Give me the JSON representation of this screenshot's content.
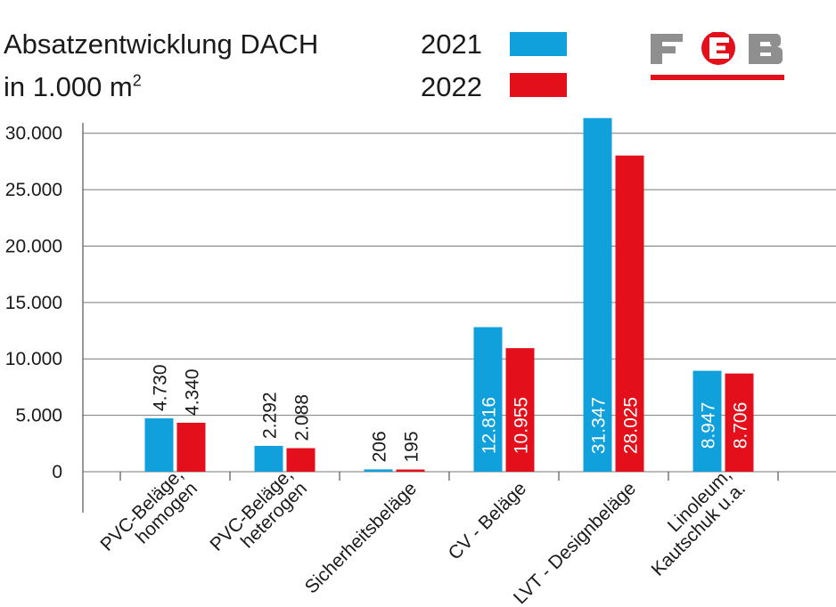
{
  "header": {
    "title_line1": "Absatzentwicklung DACH",
    "title_line2_prefix": "in 1.000 m",
    "title_line2_sup": "2"
  },
  "logo": {
    "text": "FEB",
    "colors": {
      "gray": "#8f8f8f",
      "red": "#e3101c"
    }
  },
  "colors": {
    "2021": "#10a0dc",
    "2022": "#e3101c",
    "axis": "#555555",
    "grid": "#7a7a7a"
  },
  "chart_data": {
    "type": "bar",
    "title": "Absatzentwicklung DACH in 1.000 m²",
    "categories": [
      [
        "PVC-Beläge,",
        "homogen"
      ],
      [
        "PVC-Beläge,",
        "heterogen"
      ],
      [
        "Sicherheitsbeläge"
      ],
      [
        "CV - Beläge"
      ],
      [
        "LVT - Designbeläge"
      ],
      [
        "Linoleum,",
        "Kautschuk u.a."
      ]
    ],
    "series": [
      {
        "name": "2021",
        "values": [
          4730,
          2292,
          206,
          12816,
          31347,
          8947
        ],
        "labels": [
          "4.730",
          "2.292",
          "206",
          "12.816",
          "31.347",
          "8.947"
        ]
      },
      {
        "name": "2022",
        "values": [
          4340,
          2088,
          195,
          10955,
          28025,
          8706
        ],
        "labels": [
          "4.340",
          "2.088",
          "195",
          "10.955",
          "28.025",
          "8.706"
        ]
      }
    ],
    "yticks": [
      0,
      5000,
      10000,
      15000,
      20000,
      25000,
      30000
    ],
    "ytick_labels": [
      "0",
      "5.000",
      "10.000",
      "15.000",
      "20.000",
      "25.000",
      "30.000"
    ],
    "ylim": [
      0,
      31347
    ],
    "grid": true,
    "legend": "top"
  }
}
